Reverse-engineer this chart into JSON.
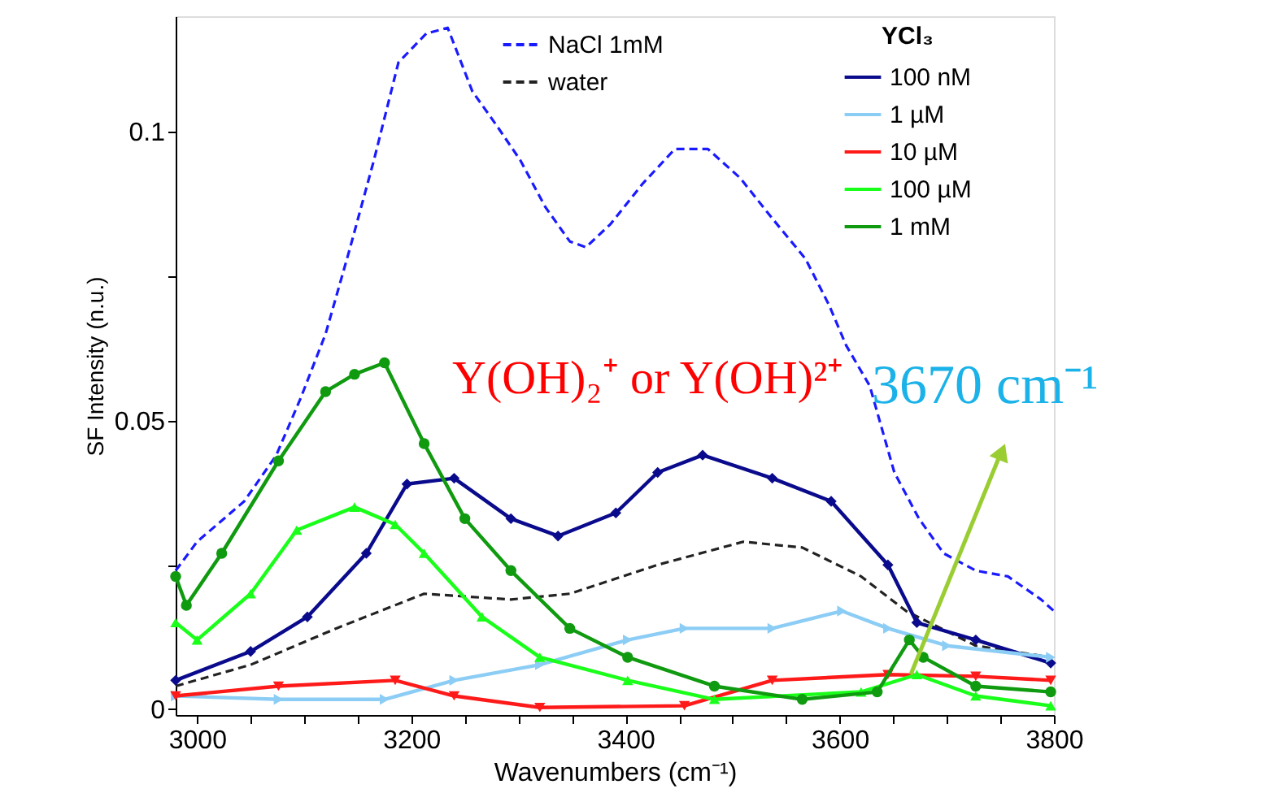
{
  "chart_data": {
    "type": "line",
    "xlabel": "Wavenumbers (cm⁻¹)",
    "ylabel": "SF Intensity (n.u.)",
    "legend_title": "YCl₃",
    "xlim": [
      2980,
      3800
    ],
    "ylim": [
      -0.001,
      0.12
    ],
    "xticks": [
      3000,
      {
        "value": 3050,
        "label": null
      },
      {
        "value": 3100,
        "label": null
      },
      {
        "value": 3150,
        "label": null
      },
      3200,
      {
        "value": 3250,
        "label": null
      },
      {
        "value": 3300,
        "label": null
      },
      {
        "value": 3350,
        "label": null
      },
      3400,
      {
        "value": 3450,
        "label": null
      },
      {
        "value": 3500,
        "label": null
      },
      {
        "value": 3550,
        "label": null
      },
      3600,
      {
        "value": 3650,
        "label": null
      },
      {
        "value": 3700,
        "label": null
      },
      {
        "value": 3750,
        "label": null
      },
      3800
    ],
    "yticks": [
      0,
      {
        "value": 0.025,
        "label": null
      },
      0.05,
      {
        "value": 0.075,
        "label": null
      },
      0.1
    ],
    "grid": false,
    "legend": "top right",
    "annotations": [
      "Y(OH)₂⁺ or Y(OH)²⁺",
      "3670 cm⁻¹"
    ],
    "series": [
      {
        "name": "NaCl 1mM",
        "color": "#1a1aff",
        "line_style": "dashed",
        "marker": "none",
        "x": [
          2980,
          3000,
          3044,
          3074,
          3097,
          3120,
          3143,
          3165,
          3188,
          3214,
          3234,
          3257,
          3280,
          3302,
          3325,
          3348,
          3363,
          3386,
          3416,
          3446,
          3477,
          3507,
          3537,
          3568,
          3590,
          3606,
          3628,
          3651,
          3674,
          3697,
          3727,
          3757,
          3788,
          3800
        ],
        "values": [
          0.024,
          0.029,
          0.036,
          0.044,
          0.054,
          0.065,
          0.08,
          0.095,
          0.112,
          0.117,
          0.118,
          0.107,
          0.101,
          0.095,
          0.087,
          0.081,
          0.08,
          0.084,
          0.091,
          0.097,
          0.097,
          0.092,
          0.085,
          0.078,
          0.07,
          0.063,
          0.056,
          0.041,
          0.033,
          0.027,
          0.024,
          0.023,
          0.019,
          0.017
        ]
      },
      {
        "name": "water",
        "color": "#222222",
        "line_style": "dashed",
        "marker": "none",
        "x": [
          2980,
          3050,
          3130,
          3212,
          3293,
          3348,
          3430,
          3510,
          3565,
          3620,
          3662,
          3727,
          3797
        ],
        "values": [
          0.004,
          0.0077,
          0.014,
          0.02,
          0.019,
          0.02,
          0.025,
          0.029,
          0.028,
          0.023,
          0.017,
          0.011,
          0.009
        ]
      },
      {
        "name": "100 nM",
        "color": "#0a0a8c",
        "line_style": "solid",
        "marker": "diamond",
        "x": [
          2980,
          3050,
          3103,
          3158,
          3196,
          3240,
          3293,
          3337,
          3391,
          3430,
          3472,
          3537,
          3592,
          3645,
          3672,
          3727,
          3797
        ],
        "values": [
          0.005,
          0.01,
          0.016,
          0.027,
          0.039,
          0.04,
          0.033,
          0.03,
          0.034,
          0.041,
          0.044,
          0.04,
          0.036,
          0.025,
          0.015,
          0.012,
          0.008
        ]
      },
      {
        "name": "1 µM",
        "color": "#8ccdf5",
        "line_style": "solid",
        "marker": "triangle-right",
        "x": [
          2980,
          3076,
          3175,
          3240,
          3320,
          3402,
          3455,
          3537,
          3602,
          3645,
          3700,
          3797
        ],
        "values": [
          0.0023,
          0.0017,
          0.0017,
          0.005,
          0.0077,
          0.012,
          0.014,
          0.014,
          0.017,
          0.014,
          0.011,
          0.009
        ]
      },
      {
        "name": "10 µM",
        "color": "#ff1a1a",
        "line_style": "solid",
        "marker": "triangle-down",
        "x": [
          2980,
          3076,
          3185,
          3240,
          3320,
          3455,
          3537,
          3645,
          3727,
          3797
        ],
        "values": [
          0.0023,
          0.004,
          0.005,
          0.0023,
          0.0003,
          0.0006,
          0.005,
          0.006,
          0.0057,
          0.005
        ]
      },
      {
        "name": "100 µM",
        "color": "#1aff1a",
        "line_style": "solid",
        "marker": "triangle-up",
        "x": [
          2980,
          3000,
          3050,
          3093,
          3147,
          3185,
          3212,
          3266,
          3320,
          3402,
          3483,
          3620,
          3672,
          3727,
          3797
        ],
        "values": [
          0.015,
          0.012,
          0.02,
          0.031,
          0.035,
          0.032,
          0.027,
          0.016,
          0.009,
          0.005,
          0.0017,
          0.003,
          0.006,
          0.0023,
          0.0006
        ]
      },
      {
        "name": "1 mM",
        "color": "#0f9a0f",
        "line_style": "solid",
        "marker": "circle",
        "x": [
          2980,
          2990,
          3023,
          3076,
          3120,
          3147,
          3175,
          3212,
          3250,
          3293,
          3348,
          3402,
          3483,
          3565,
          3635,
          3665,
          3678,
          3727,
          3797
        ],
        "values": [
          0.023,
          0.018,
          0.027,
          0.043,
          0.055,
          0.058,
          0.06,
          0.046,
          0.033,
          0.024,
          0.014,
          0.009,
          0.004,
          0.0017,
          0.003,
          0.012,
          0.009,
          0.004,
          0.003
        ]
      }
    ]
  }
}
